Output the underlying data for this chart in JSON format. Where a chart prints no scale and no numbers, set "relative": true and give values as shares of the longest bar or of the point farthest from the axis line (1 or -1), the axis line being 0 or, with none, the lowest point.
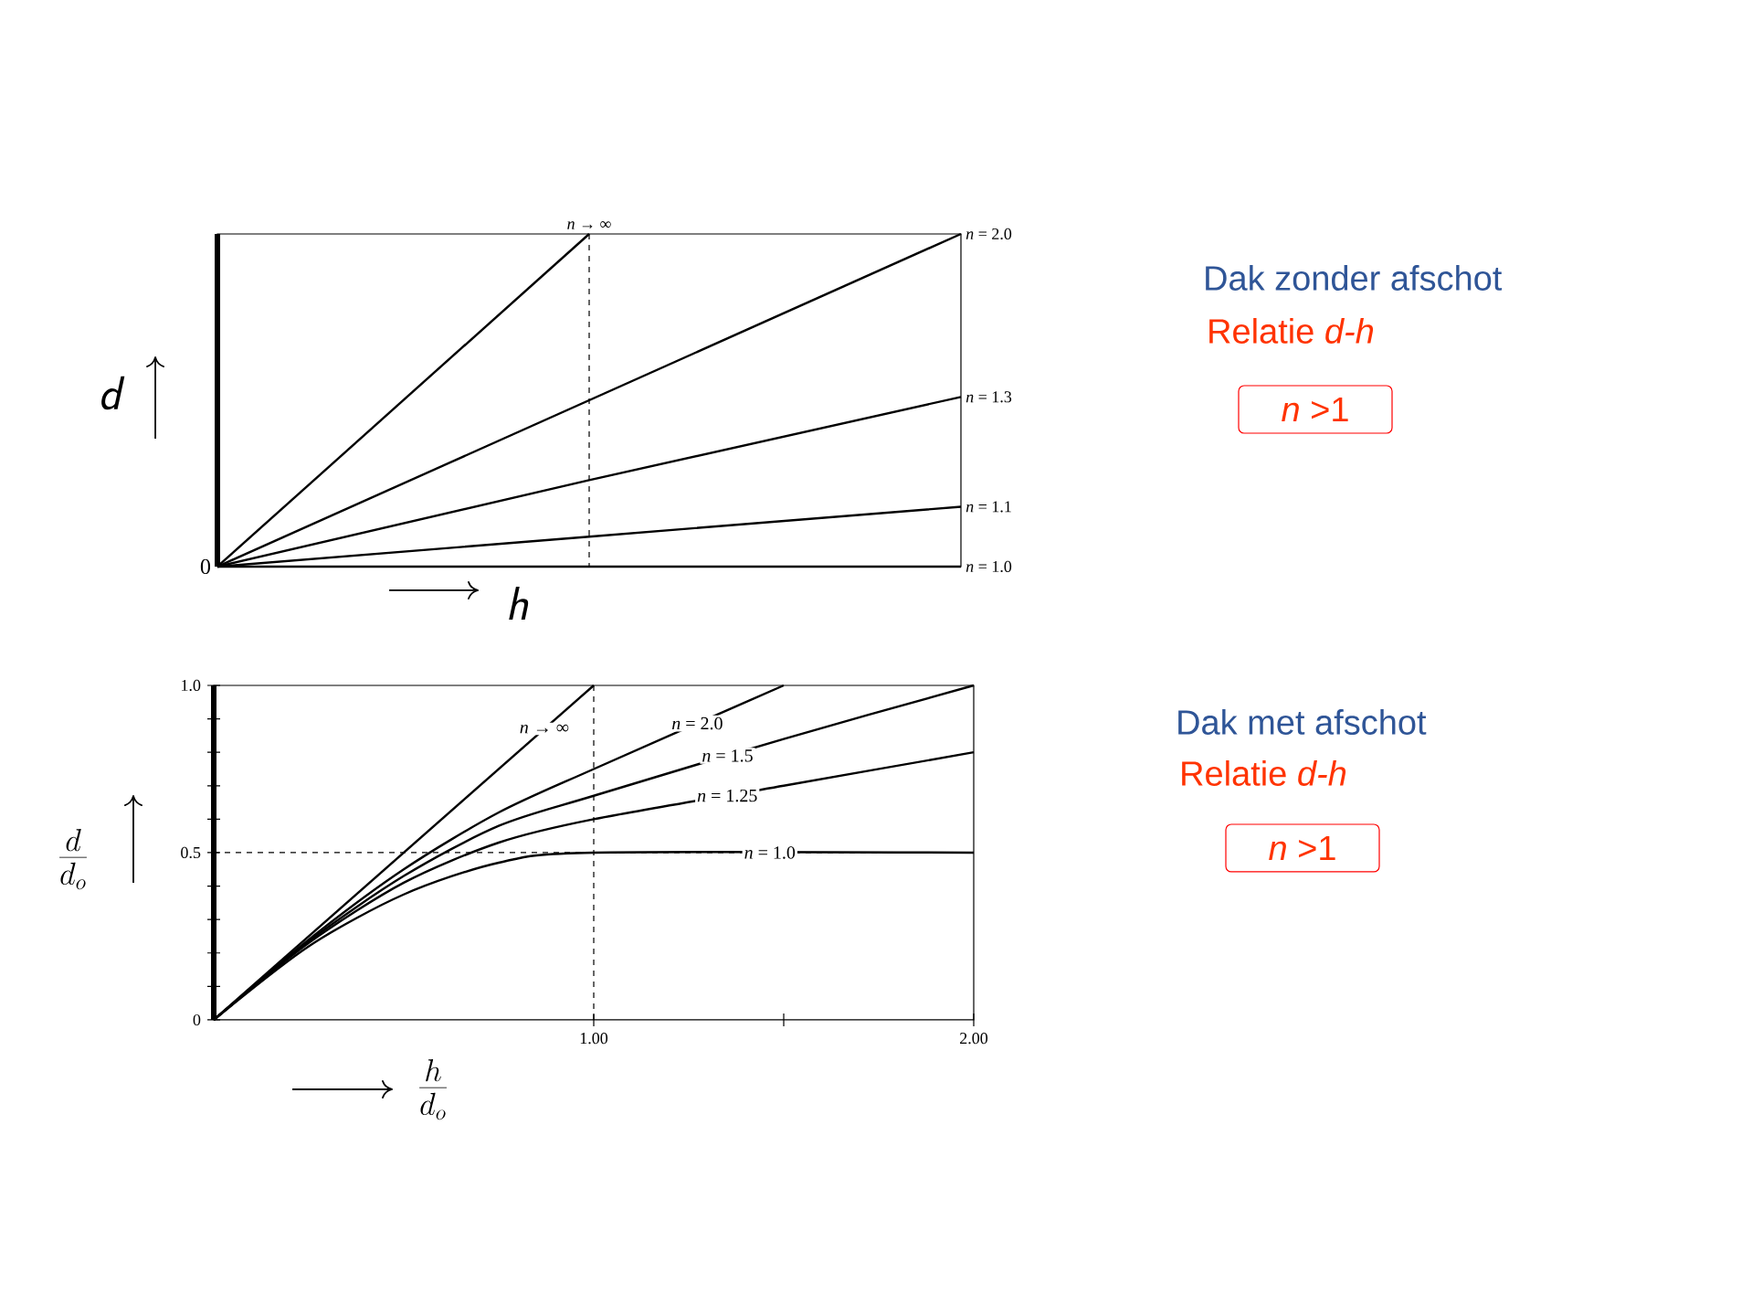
{
  "chart_data": [
    {
      "type": "line",
      "relative": true,
      "xlabel": "h",
      "ylabel": "d",
      "categories": [
        null,
        null,
        null
      ],
      "series": [
        {
          "name": "*n* → ∞",
          "color": "#000000",
          "values": [
            0,
            1,
            null
          ]
        },
        {
          "name": "*n* = 2.0",
          "color": "#000000",
          "values": [
            0,
            0.5,
            1
          ]
        },
        {
          "name": "*n* = 1.3",
          "color": "#000000",
          "values": [
            0,
            0.26,
            0.51
          ]
        },
        {
          "name": "*n* = 1.1",
          "color": "#000000",
          "values": [
            0,
            0.09,
            0.18
          ]
        },
        {
          "name": "*n* = 1.0",
          "color": "#000000",
          "values": [
            0,
            0,
            0
          ]
        }
      ],
      "annotations": [
        "0"
      ]
    },
    {
      "type": "other",
      "title": "Dak zonder afschot",
      "subtitle": "Relatie *d-h*",
      "annotations": [
        "*n* >1"
      ]
    },
    {
      "type": "line",
      "xlabel": "\\frac{h}{d_o}",
      "ylabel": "\\frac{d}{d_o}",
      "xlim": [
        0,
        2
      ],
      "xticks": [
        {
          "value": 1,
          "label": "1.00"
        },
        {
          "value": 1.5,
          "label": null
        },
        {
          "value": 2,
          "label": "2.00"
        }
      ],
      "ylim": [
        0,
        1
      ],
      "yticks": [
        0,
        {
          "value": 0.1,
          "label": null
        },
        {
          "value": 0.2,
          "label": null
        },
        {
          "value": 0.3,
          "label": null
        },
        {
          "value": 0.4,
          "label": null
        },
        0.5,
        {
          "value": 0.6,
          "label": null
        },
        {
          "value": 0.7,
          "label": null
        },
        {
          "value": 0.8,
          "label": null
        },
        {
          "value": 0.9,
          "label": null
        },
        {
          "value": 1,
          "label": "1.0"
        }
      ],
      "series": [
        {
          "name": "*n* → ∞",
          "color": "#000000",
          "x": [
            0,
            1
          ],
          "values": [
            0,
            1
          ]
        },
        {
          "name": "*n* = 2.0",
          "color": "#000000",
          "x": [
            0,
            0.25,
            0.5,
            0.75,
            1,
            1.5
          ],
          "values": [
            0,
            0.24,
            0.45,
            0.62,
            0.75,
            1.0
          ]
        },
        {
          "name": "*n* = 1.5",
          "color": "#000000",
          "x": [
            0,
            0.25,
            0.5,
            0.75,
            1,
            1.5,
            2
          ],
          "values": [
            0,
            0.235,
            0.43,
            0.58,
            0.67,
            0.84,
            1.0
          ]
        },
        {
          "name": "*n* = 1.25",
          "color": "#000000",
          "x": [
            0,
            0.25,
            0.5,
            0.75,
            1,
            1.5,
            2
          ],
          "values": [
            0,
            0.23,
            0.41,
            0.53,
            0.6,
            0.7,
            0.8
          ]
        },
        {
          "name": "*n* = 1.0",
          "color": "#000000",
          "x": [
            0,
            0.25,
            0.5,
            0.75,
            1,
            2
          ],
          "values": [
            0,
            0.22,
            0.375,
            0.47,
            0.5,
            0.5
          ]
        }
      ],
      "ref_lines": [
        {
          "axis": "x",
          "value": 1,
          "line_style": "dashed"
        },
        {
          "axis": "y",
          "value": 0.5,
          "line_style": "dashed"
        }
      ]
    },
    {
      "type": "other",
      "title": "Dak met afschot",
      "subtitle": "Relatie *d-h*",
      "annotations": [
        "*n* >1"
      ]
    }
  ]
}
